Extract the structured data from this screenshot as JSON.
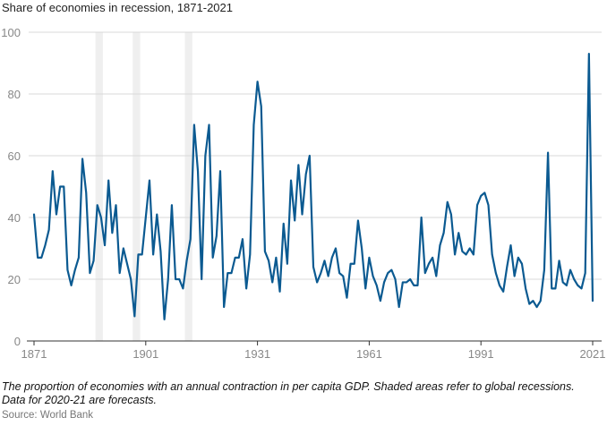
{
  "title": "Share of economies in recession, 1871-2021",
  "note": "The proportion of economies with an annual contraction in per capita GDP. Shaded areas refer to global recessions. Data for 2020-21 are forecasts.",
  "source": "Source: World Bank",
  "colors": {
    "line": "#0b5a91",
    "shade": "#efefef",
    "grid": "#d9d9d9",
    "axis": "#333333"
  },
  "chart_data": {
    "type": "line",
    "title": "Share of economies in recession, 1871-2021",
    "xlim": [
      1871,
      2021
    ],
    "ylim": [
      0,
      100
    ],
    "x_ticks": [
      1871,
      1901,
      1931,
      1961,
      1991,
      2021
    ],
    "y_ticks": [
      0,
      20,
      40,
      60,
      80,
      100
    ],
    "grid": "horizontal",
    "shaded_periods": [
      [
        1888,
        1889
      ],
      [
        1898,
        1899
      ],
      [
        1912,
        1913
      ]
    ],
    "shaded_periods_note": "global recessions",
    "series": [
      {
        "x": [
          1871,
          1872,
          1873,
          1874,
          1875,
          1876,
          1877,
          1878,
          1879,
          1880,
          1881,
          1882,
          1883,
          1884,
          1885,
          1886,
          1887,
          1888,
          1889,
          1890,
          1891,
          1892,
          1893,
          1894,
          1895,
          1896,
          1897,
          1898,
          1899,
          1900,
          1901,
          1902,
          1903,
          1904,
          1905,
          1906,
          1907,
          1908,
          1909,
          1910,
          1911,
          1912,
          1913,
          1914,
          1915,
          1916,
          1917,
          1918,
          1919,
          1920,
          1921,
          1922,
          1923,
          1924,
          1925,
          1926,
          1927,
          1928,
          1929,
          1930,
          1931,
          1932,
          1933,
          1934,
          1935,
          1936,
          1937,
          1938,
          1939,
          1940,
          1941,
          1942,
          1943,
          1944,
          1945,
          1946,
          1947,
          1948,
          1949,
          1950,
          1951,
          1952,
          1953,
          1954,
          1955,
          1956,
          1957,
          1958,
          1959,
          1960,
          1961,
          1962,
          1963,
          1964,
          1965,
          1966,
          1967,
          1968,
          1969,
          1970,
          1971,
          1972,
          1973,
          1974,
          1975,
          1976,
          1977,
          1978,
          1979,
          1980,
          1981,
          1982,
          1983,
          1984,
          1985,
          1986,
          1987,
          1988,
          1989,
          1990,
          1991,
          1992,
          1993,
          1994,
          1995,
          1996,
          1997,
          1998,
          1999,
          2000,
          2001,
          2002,
          2003,
          2004,
          2005,
          2006,
          2007,
          2008,
          2009,
          2010,
          2011,
          2012,
          2013,
          2014,
          2015,
          2016,
          2017,
          2018,
          2019,
          2020,
          2021
        ],
        "values": [
          41,
          27,
          27,
          31,
          36,
          55,
          41,
          50,
          50,
          23,
          18,
          23,
          27,
          59,
          48,
          22,
          26,
          44,
          40,
          31,
          52,
          35,
          44,
          22,
          30,
          25,
          20,
          8,
          28,
          28,
          40,
          52,
          28,
          41,
          29,
          7,
          20,
          44,
          20,
          20,
          17,
          26,
          33,
          70,
          55,
          20,
          60,
          70,
          27,
          34,
          55,
          11,
          22,
          22,
          27,
          27,
          33,
          17,
          28,
          70,
          84,
          76,
          29,
          26,
          19,
          27,
          16,
          38,
          25,
          52,
          39,
          57,
          41,
          54,
          60,
          24,
          19,
          22,
          26,
          21,
          27,
          30,
          22,
          21,
          14,
          25,
          25,
          39,
          30,
          17,
          27,
          21,
          18,
          13,
          19,
          22,
          23,
          20,
          11,
          19,
          19,
          20,
          18,
          18,
          40,
          22,
          25,
          27,
          21,
          31,
          35,
          45,
          41,
          28,
          35,
          29,
          28,
          30,
          28,
          44,
          47,
          48,
          44,
          28,
          22,
          18,
          16,
          24,
          31,
          21,
          27,
          25,
          17,
          12,
          13,
          11,
          13,
          23,
          61,
          17,
          17,
          26,
          19,
          18,
          23,
          20,
          18,
          17,
          22,
          93,
          13
        ]
      }
    ]
  }
}
